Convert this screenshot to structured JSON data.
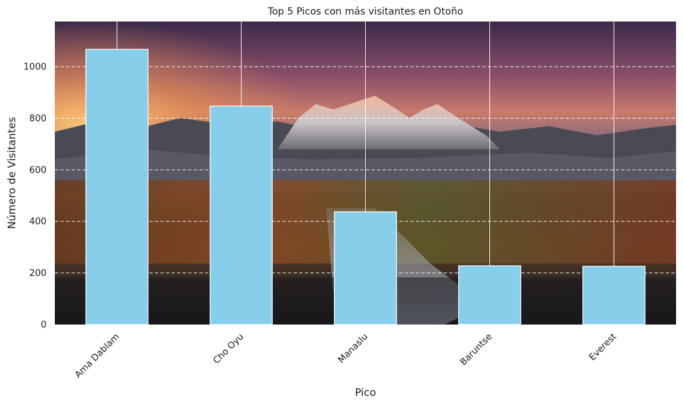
{
  "chart_data": {
    "type": "bar",
    "title": "Top 5 Picos con más visitantes en Otoño",
    "xlabel": "Pico",
    "ylabel": "Número de Visitantes",
    "categories": [
      "Ama Dablam",
      "Cho Oyu",
      "Manaslu",
      "Baruntse",
      "Everest"
    ],
    "values": [
      1067,
      847,
      437,
      228,
      226
    ],
    "ylim": [
      0,
      1175
    ],
    "yticks": [
      0,
      200,
      400,
      600,
      800,
      1000
    ],
    "grid": "y dashed, x solid",
    "bar_color": "#87CEEB",
    "background": "mountain landscape photo at sunset"
  }
}
